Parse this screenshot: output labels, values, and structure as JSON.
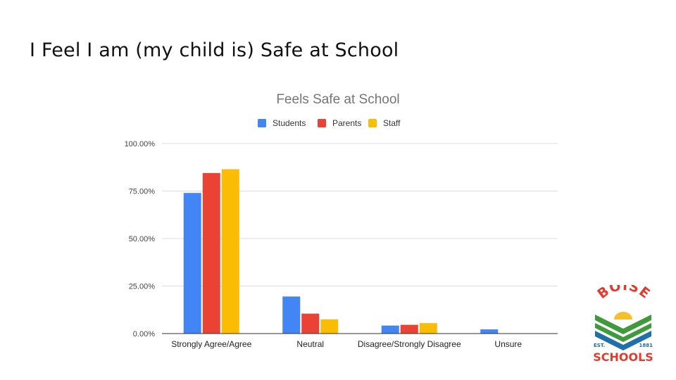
{
  "slide": {
    "title": "I Feel I am (my child is) Safe at School"
  },
  "chart_data": {
    "type": "bar",
    "title": "Feels Safe at School",
    "categories": [
      "Strongly Agree/Agree",
      "Neutral",
      "Disagree/Strongly Disagree",
      "Unsure"
    ],
    "series": [
      {
        "name": "Students",
        "color": "#4285f4",
        "values": [
          74,
          19.5,
          4.2,
          2.2
        ]
      },
      {
        "name": "Parents",
        "color": "#ea4335",
        "values": [
          84.5,
          10.5,
          4.6,
          0
        ]
      },
      {
        "name": "Staff",
        "color": "#fbbc04",
        "values": [
          86.5,
          7.5,
          5.5,
          0
        ]
      }
    ],
    "ylim": [
      0,
      100
    ],
    "yticks": [
      "0.00%",
      "25.00%",
      "50.00%",
      "75.00%",
      "100.00%"
    ],
    "ytick_values": [
      0,
      25,
      50,
      75,
      100
    ],
    "legend_position": "top",
    "grid": true,
    "xlabel": "",
    "ylabel": ""
  },
  "logo": {
    "name": "Boise Schools logo",
    "wordmark_top": "BOISE",
    "wordmark_bottom": "SCHOOLS",
    "est": "EST.",
    "year": "1881",
    "colors": {
      "red": "#e23b2e",
      "green": "#3f9a3b",
      "blue": "#1f6fa8",
      "yellow": "#f6c02b"
    }
  }
}
